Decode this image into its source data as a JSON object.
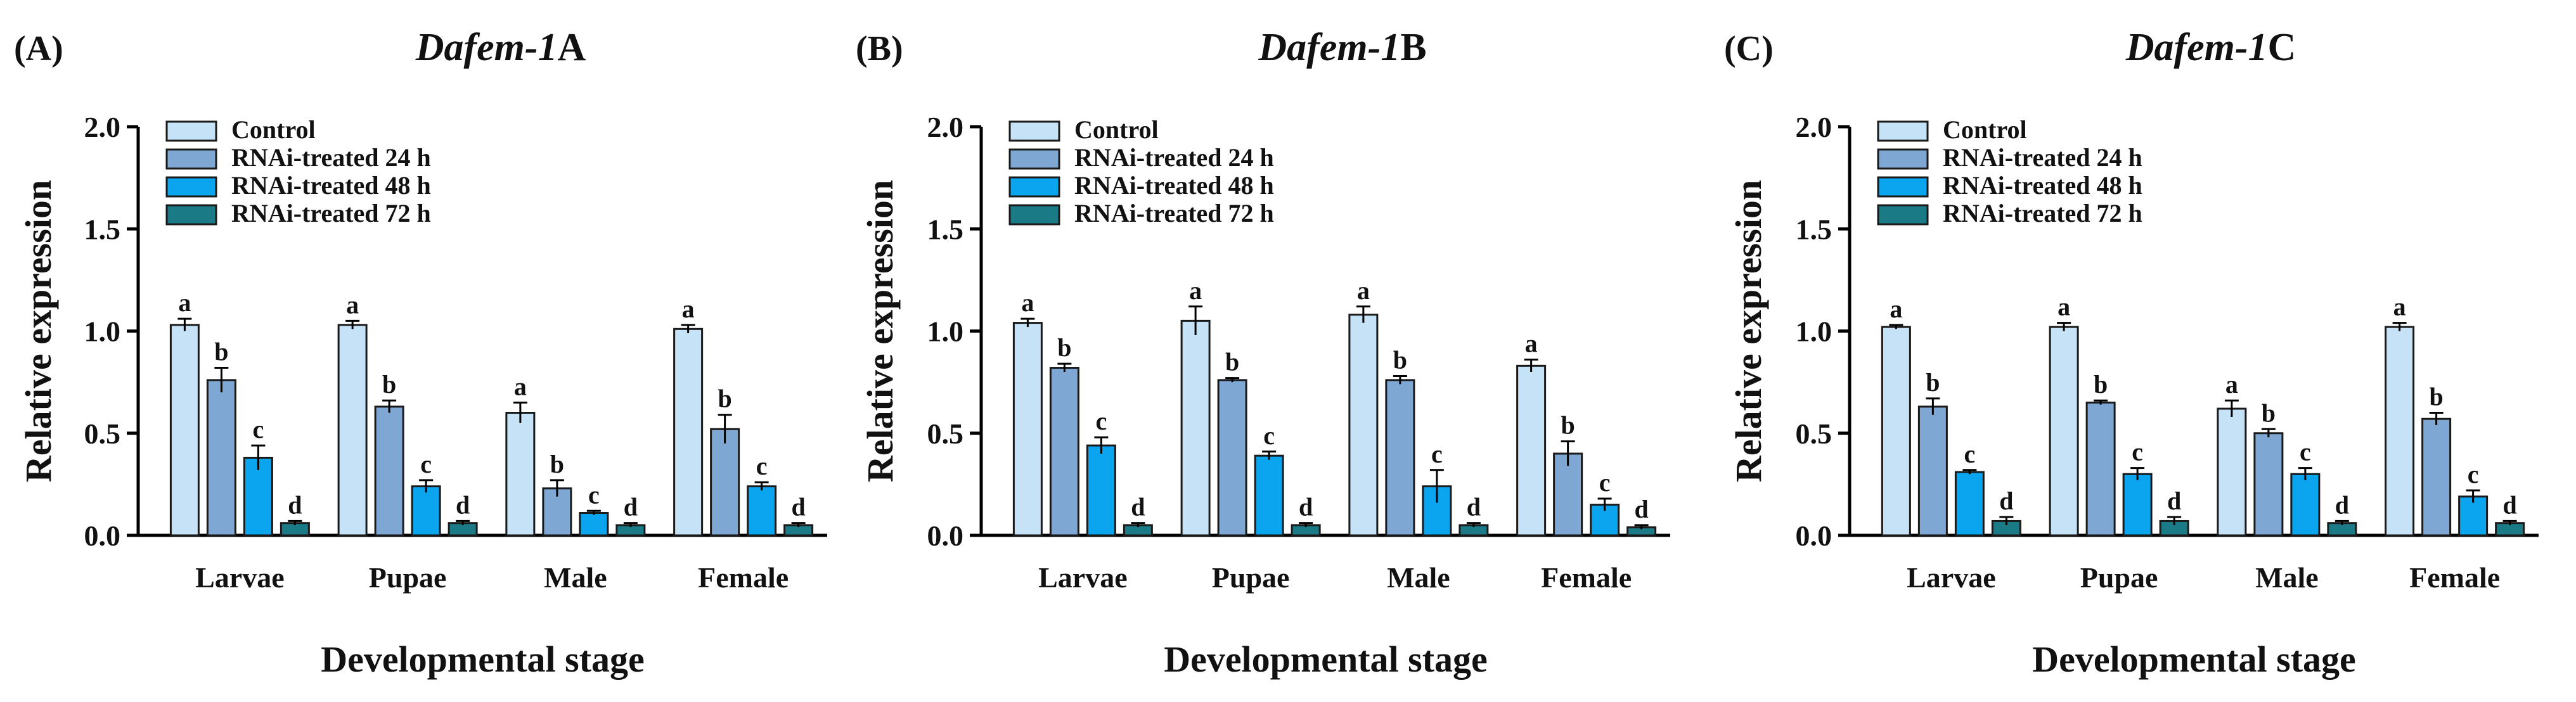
{
  "figure": {
    "colors": {
      "control": "#c6e2f7",
      "rnai_24h": "#7ea7d4",
      "rnai_48h": "#0aa4ef",
      "rnai_72h": "#1a7a86",
      "edge": "#1a1a1a"
    }
  },
  "chart_data": [
    {
      "type": "bar",
      "panel_label": "(A)",
      "title_gene": "Dafem-1",
      "title_suffix": "A",
      "xlabel": "Developmental stage",
      "ylabel": "Relative expression",
      "ylim": [
        0,
        2.0
      ],
      "yticks": [
        "0.0",
        "0.5",
        "1.0",
        "1.5",
        "2.0"
      ],
      "categories": [
        "Larvae",
        "Pupae",
        "Male",
        "Female"
      ],
      "legend_position": "top-left",
      "series": [
        {
          "name": "Control",
          "values": [
            1.03,
            1.03,
            0.6,
            1.01
          ],
          "errors": [
            0.03,
            0.02,
            0.05,
            0.02
          ],
          "letters": [
            "a",
            "a",
            "a",
            "a"
          ]
        },
        {
          "name": "RNAi-treated 24 h",
          "values": [
            0.76,
            0.63,
            0.23,
            0.52
          ],
          "errors": [
            0.06,
            0.03,
            0.04,
            0.07
          ],
          "letters": [
            "b",
            "b",
            "b",
            "b"
          ]
        },
        {
          "name": "RNAi-treated 48 h",
          "values": [
            0.38,
            0.24,
            0.11,
            0.24
          ],
          "errors": [
            0.06,
            0.03,
            0.01,
            0.02
          ],
          "letters": [
            "c",
            "c",
            "c",
            "c"
          ]
        },
        {
          "name": "RNAi-treated 72 h",
          "values": [
            0.06,
            0.06,
            0.05,
            0.05
          ],
          "errors": [
            0.01,
            0.01,
            0.01,
            0.01
          ],
          "letters": [
            "d",
            "d",
            "d",
            "d"
          ]
        }
      ]
    },
    {
      "type": "bar",
      "panel_label": "(B)",
      "title_gene": "Dafem-1",
      "title_suffix": "B",
      "xlabel": "Developmental stage",
      "ylabel": "Relative expression",
      "ylim": [
        0,
        2.0
      ],
      "yticks": [
        "0.0",
        "0.5",
        "1.0",
        "1.5",
        "2.0"
      ],
      "categories": [
        "Larvae",
        "Pupae",
        "Male",
        "Female"
      ],
      "legend_position": "top-left",
      "series": [
        {
          "name": "Control",
          "values": [
            1.04,
            1.05,
            1.08,
            0.83
          ],
          "errors": [
            0.02,
            0.07,
            0.04,
            0.03
          ],
          "letters": [
            "a",
            "a",
            "a",
            "a"
          ]
        },
        {
          "name": "RNAi-treated 24 h",
          "values": [
            0.82,
            0.76,
            0.76,
            0.4
          ],
          "errors": [
            0.02,
            0.01,
            0.02,
            0.06
          ],
          "letters": [
            "b",
            "b",
            "b",
            "b"
          ]
        },
        {
          "name": "RNAi-treated 48 h",
          "values": [
            0.44,
            0.39,
            0.24,
            0.15
          ],
          "errors": [
            0.04,
            0.02,
            0.08,
            0.03
          ],
          "letters": [
            "c",
            "c",
            "c",
            "c"
          ]
        },
        {
          "name": "RNAi-treated 72 h",
          "values": [
            0.05,
            0.05,
            0.05,
            0.04
          ],
          "errors": [
            0.01,
            0.01,
            0.01,
            0.01
          ],
          "letters": [
            "d",
            "d",
            "d",
            "d"
          ]
        }
      ]
    },
    {
      "type": "bar",
      "panel_label": "(C)",
      "title_gene": "Dafem-1",
      "title_suffix": "C",
      "xlabel": "Developmental stage",
      "ylabel": "Relative expression",
      "ylim": [
        0,
        2.0
      ],
      "yticks": [
        "0.0",
        "0.5",
        "1.0",
        "1.5",
        "2.0"
      ],
      "categories": [
        "Larvae",
        "Pupae",
        "Male",
        "Female"
      ],
      "legend_position": "top-left",
      "series": [
        {
          "name": "Control",
          "values": [
            1.02,
            1.02,
            0.62,
            1.02
          ],
          "errors": [
            0.01,
            0.02,
            0.04,
            0.02
          ],
          "letters": [
            "a",
            "a",
            "a",
            "a"
          ]
        },
        {
          "name": "RNAi-treated 24 h",
          "values": [
            0.63,
            0.65,
            0.5,
            0.57
          ],
          "errors": [
            0.04,
            0.01,
            0.02,
            0.03
          ],
          "letters": [
            "b",
            "b",
            "b",
            "b"
          ]
        },
        {
          "name": "RNAi-treated 48 h",
          "values": [
            0.31,
            0.3,
            0.3,
            0.19
          ],
          "errors": [
            0.01,
            0.03,
            0.03,
            0.03
          ],
          "letters": [
            "c",
            "c",
            "c",
            "c"
          ]
        },
        {
          "name": "RNAi-treated 72 h",
          "values": [
            0.07,
            0.07,
            0.06,
            0.06
          ],
          "errors": [
            0.02,
            0.02,
            0.01,
            0.01
          ],
          "letters": [
            "d",
            "d",
            "d",
            "d"
          ]
        }
      ]
    }
  ]
}
